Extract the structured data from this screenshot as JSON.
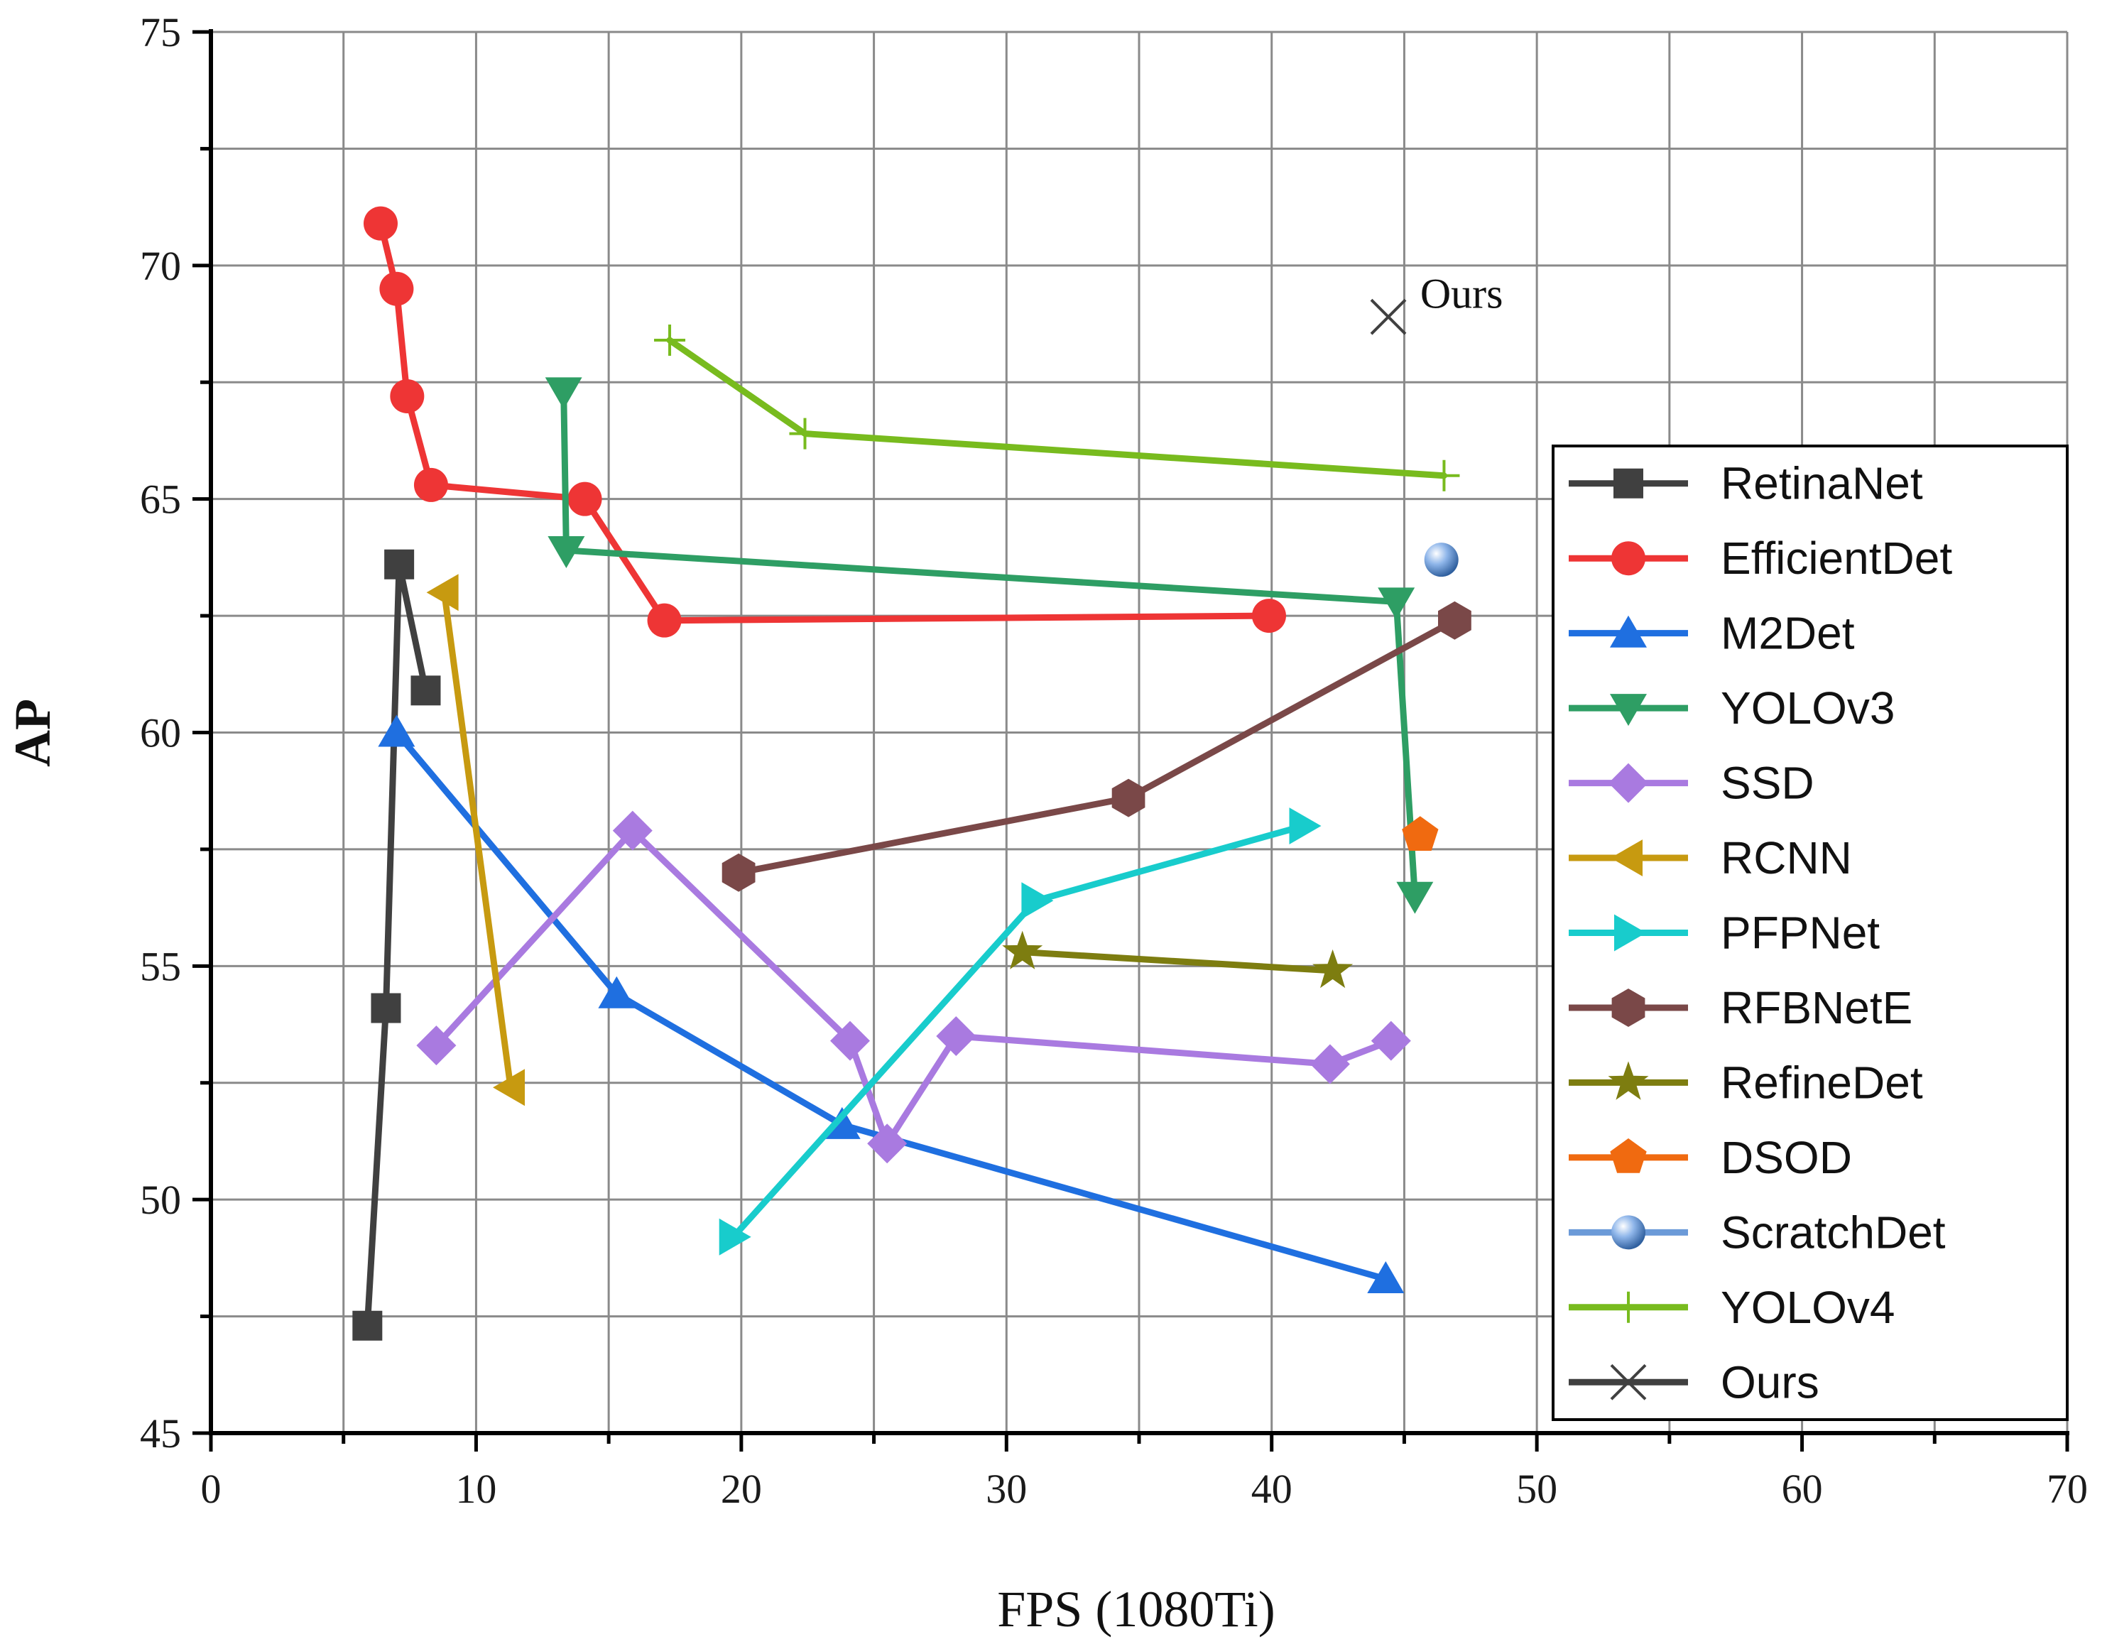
{
  "chart_data": {
    "type": "line",
    "title": "",
    "xlabel": "FPS (1080Ti)",
    "ylabel": "AP",
    "xlim": [
      0,
      70
    ],
    "ylim": [
      45,
      75
    ],
    "xticks": [
      0,
      10,
      20,
      30,
      40,
      50,
      60,
      70
    ],
    "yticks": [
      45,
      50,
      55,
      60,
      65,
      70,
      75
    ],
    "x_minor_step": 5,
    "y_minor_step": 2.5,
    "grid": true,
    "legend_position": "right",
    "series": [
      {
        "name": "RetinaNet",
        "color": "#404040",
        "marker": "square",
        "points": [
          [
            5.9,
            47.3
          ],
          [
            6.6,
            54.1
          ],
          [
            7.1,
            63.6
          ],
          [
            8.1,
            60.9
          ]
        ]
      },
      {
        "name": "EfficientDet",
        "color": "#ee3535",
        "marker": "circle",
        "points": [
          [
            6.4,
            70.9
          ],
          [
            7.0,
            69.5
          ],
          [
            7.4,
            67.2
          ],
          [
            8.3,
            65.3
          ],
          [
            14.1,
            65.0
          ],
          [
            17.1,
            62.4
          ],
          [
            39.9,
            62.5
          ]
        ]
      },
      {
        "name": "M2Det",
        "color": "#1f6fe0",
        "marker": "triangle-up",
        "points": [
          [
            7.0,
            60.0
          ],
          [
            15.3,
            54.4
          ],
          [
            23.8,
            51.6
          ],
          [
            44.3,
            48.3
          ]
        ]
      },
      {
        "name": "YOLOv3",
        "color": "#2e9e64",
        "marker": "triangle-down",
        "points": [
          [
            13.3,
            67.3
          ],
          [
            13.4,
            63.9
          ],
          [
            44.7,
            62.8
          ],
          [
            45.4,
            56.5
          ]
        ]
      },
      {
        "name": "SSD",
        "color": "#a97ae0",
        "marker": "diamond",
        "points": [
          [
            8.5,
            53.3
          ],
          [
            15.9,
            57.9
          ],
          [
            24.1,
            53.4
          ],
          [
            25.5,
            51.2
          ],
          [
            28.1,
            53.5
          ],
          [
            42.2,
            52.9
          ],
          [
            44.5,
            53.4
          ]
        ]
      },
      {
        "name": "RCNN",
        "color": "#c79a10",
        "marker": "triangle-left",
        "points": [
          [
            8.8,
            63.0
          ],
          [
            11.3,
            52.4
          ]
        ]
      },
      {
        "name": "PFPNet",
        "color": "#18cccc",
        "marker": "triangle-right",
        "points": [
          [
            19.7,
            49.2
          ],
          [
            31.1,
            56.4
          ],
          [
            41.2,
            58.0
          ]
        ]
      },
      {
        "name": "RFBNetE",
        "color": "#7a4848",
        "marker": "hexagon",
        "points": [
          [
            19.9,
            57.0
          ],
          [
            34.6,
            58.6
          ],
          [
            46.9,
            62.4
          ]
        ]
      },
      {
        "name": "RefineDet",
        "color": "#7d7d10",
        "marker": "star",
        "points": [
          [
            30.6,
            55.3
          ],
          [
            42.3,
            54.9
          ]
        ]
      },
      {
        "name": "DSOD",
        "color": "#f06a10",
        "marker": "pentagon",
        "points": [
          [
            45.6,
            57.8
          ]
        ]
      },
      {
        "name": "ScratchDet",
        "color": "#6b9ad8",
        "marker": "sphere",
        "points": [
          [
            46.4,
            63.7
          ]
        ]
      },
      {
        "name": "YOLOv4",
        "color": "#78bb1e",
        "marker": "plus",
        "points": [
          [
            17.3,
            68.4
          ],
          [
            22.4,
            66.4
          ],
          [
            46.5,
            65.5
          ]
        ]
      },
      {
        "name": "Ours",
        "color": "#404040",
        "marker": "x",
        "points": [
          [
            44.4,
            68.9
          ]
        ]
      }
    ],
    "annotations": [
      {
        "text": "Ours",
        "x": 45.6,
        "y": 69.4
      }
    ]
  }
}
